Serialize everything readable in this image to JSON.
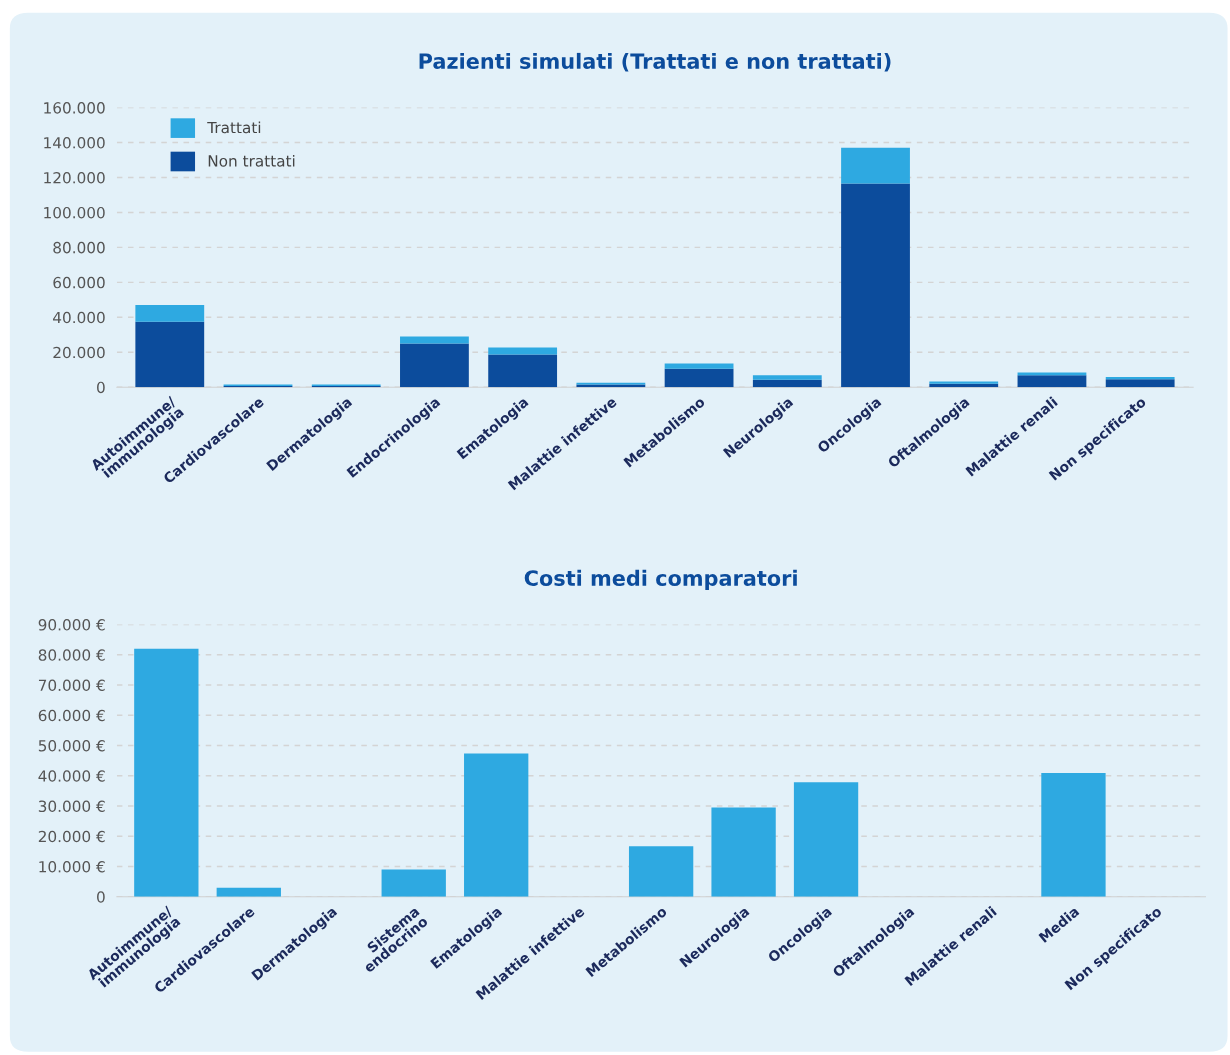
{
  "chart_data": [
    {
      "type": "bar",
      "title": "Pazienti simulati (Trattati e non trattati)",
      "stacked": true,
      "grid": "y",
      "legend": "top left",
      "categories": [
        "Autoimmune/\nimmunologia",
        "Cardiovascolare",
        "Dermatologia",
        "Endocrinologia",
        "Ematologia",
        "Malattie infettive",
        "Metabolismo",
        "Neurologia",
        "Oncologia",
        "Oftalmologia",
        "Malattie renali",
        "Non specificato"
      ],
      "series": [
        {
          "name": "Non trattati",
          "color": "#0c4c9c",
          "values": [
            37500,
            700,
            700,
            25000,
            18700,
            1600,
            10600,
            4300,
            116500,
            2000,
            6800,
            4500
          ]
        },
        {
          "name": "Trattati",
          "color": "#2ea9e1",
          "values": [
            9500,
            800,
            800,
            4000,
            4000,
            1000,
            2900,
            2500,
            20500,
            1300,
            1600,
            1300
          ]
        }
      ],
      "ylim": [
        0,
        160000
      ],
      "yticks": [
        {
          "value": 0,
          "label": "0"
        },
        {
          "value": 20000,
          "label": "20.000"
        },
        {
          "value": 40000,
          "label": "40.000"
        },
        {
          "value": 60000,
          "label": "60.000"
        },
        {
          "value": 80000,
          "label": "80.000"
        },
        {
          "value": 100000,
          "label": "100.000"
        },
        {
          "value": 120000,
          "label": "120.000"
        },
        {
          "value": 140000,
          "label": "140.000"
        },
        {
          "value": 160000,
          "label": "160.000"
        }
      ]
    },
    {
      "type": "bar",
      "title": "Costi medi comparatori",
      "grid": "y",
      "legend": false,
      "categories": [
        "Autoimmune/\nimmunologia",
        "Cardiovascolare",
        "Dermatologia",
        "Sistema\nendocrino",
        "Ematologia",
        "Malattie infettive",
        "Metabolismo",
        "Neurologia",
        "Oncologia",
        "Oftalmologia",
        "Malattie renali",
        "Media",
        "Non specificato"
      ],
      "series": [
        {
          "color": "#2ea9e1",
          "values": [
            82000,
            3000,
            0,
            9000,
            47400,
            0,
            16700,
            29500,
            37900,
            0,
            0,
            40900,
            0
          ]
        }
      ],
      "ylim": [
        0,
        90000
      ],
      "yticks": [
        {
          "value": 0,
          "label": "0"
        },
        {
          "value": 10000,
          "label": "10.000 €"
        },
        {
          "value": 20000,
          "label": "20.000 €"
        },
        {
          "value": 30000,
          "label": "30.000 €"
        },
        {
          "value": 40000,
          "label": "40.000 €"
        },
        {
          "value": 50000,
          "label": "50.000 €"
        },
        {
          "value": 60000,
          "label": "60.000 €"
        },
        {
          "value": 70000,
          "label": "70.000 €"
        },
        {
          "value": 80000,
          "label": "80.000 €"
        },
        {
          "value": 90000,
          "label": "90.000 €"
        }
      ]
    }
  ]
}
